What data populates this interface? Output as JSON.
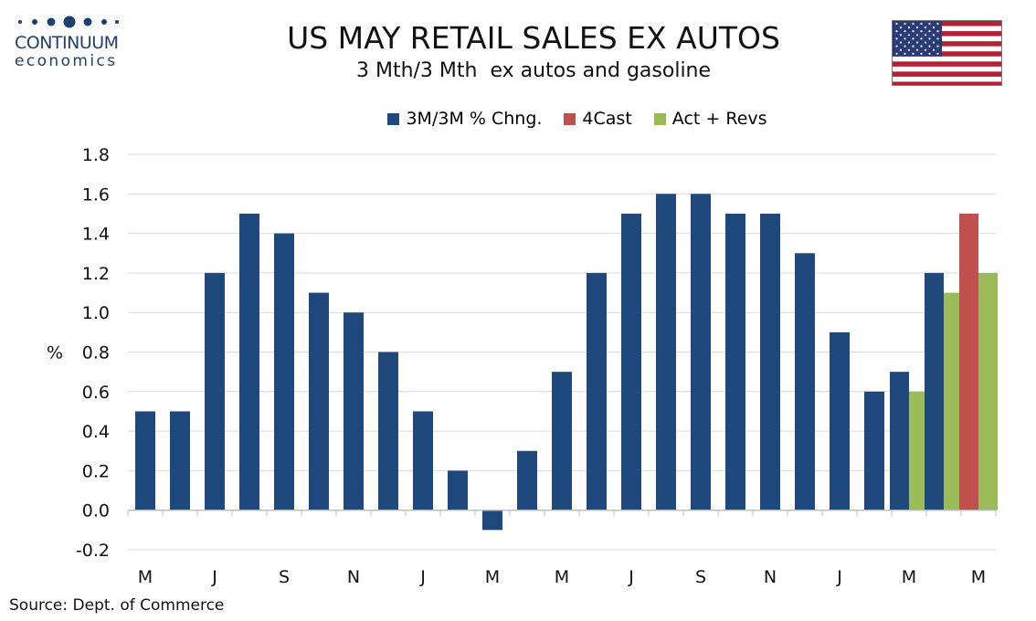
{
  "header": {
    "title": "US MAY RETAIL SALES EX AUTOS",
    "subtitle": "3 Mth/3 Mth  ex autos and gasoline"
  },
  "logo": {
    "word": "CONTINUUM",
    "sub": "economics",
    "color": "#1f3f6e"
  },
  "source": "Source: Dept. of Commerce",
  "colors": {
    "main": "#1f497d",
    "forecast": "#c0504d",
    "revised": "#9bbb59",
    "grid": "#d9d9d9"
  },
  "chart_data": {
    "type": "bar",
    "legend": [
      "3M/3M % Chng.",
      "4Cast",
      "Act + Revs"
    ],
    "legend_placement": "top",
    "ylabel": "%",
    "ylim": [
      -0.2,
      1.8
    ],
    "yticks": [
      "1.8",
      "1.6",
      "1.4",
      "1.2",
      "1.0",
      "0.8",
      "0.6",
      "0.4",
      "0.2",
      "0.0",
      "-0.2"
    ],
    "grid": true,
    "x_tick_labels": [
      "M",
      "J",
      "S",
      "N",
      "J",
      "M",
      "M",
      "J",
      "S",
      "N",
      "J",
      "M",
      "M"
    ],
    "series": [
      {
        "name": "3M/3M % Chng.",
        "values": [
          0.5,
          0.5,
          1.2,
          1.5,
          1.4,
          1.1,
          1.0,
          0.8,
          0.5,
          0.2,
          -0.1,
          0.3,
          0.7,
          1.2,
          1.5,
          1.6,
          1.6,
          1.5,
          1.5,
          1.3,
          0.9,
          0.6,
          0.7,
          1.2,
          null
        ]
      },
      {
        "name": "4Cast",
        "values": [
          null,
          null,
          null,
          null,
          null,
          null,
          null,
          null,
          null,
          null,
          null,
          null,
          null,
          null,
          null,
          null,
          null,
          null,
          null,
          null,
          null,
          null,
          null,
          null,
          1.5
        ]
      },
      {
        "name": "Act + Revs",
        "values": [
          null,
          null,
          null,
          null,
          null,
          null,
          null,
          null,
          null,
          null,
          null,
          null,
          null,
          null,
          null,
          null,
          null,
          null,
          null,
          null,
          null,
          null,
          0.6,
          1.1,
          1.2
        ]
      }
    ]
  }
}
